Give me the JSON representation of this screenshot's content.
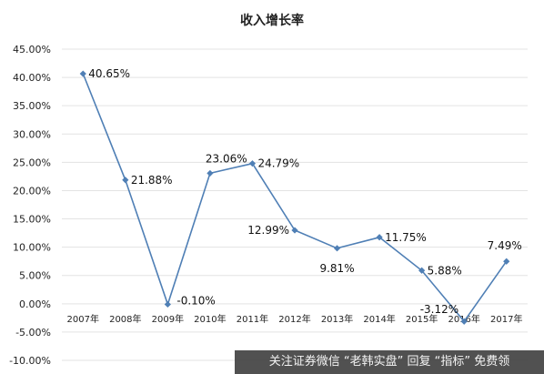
{
  "chart_data": {
    "type": "line",
    "title": "收入增长率",
    "categories": [
      "2007年",
      "2008年",
      "2009年",
      "2010年",
      "2011年",
      "2012年",
      "2013年",
      "2014年",
      "2015年",
      "2016年",
      "2017年"
    ],
    "series": [
      {
        "values": [
          40.65,
          21.88,
          -0.1,
          23.06,
          24.79,
          12.99,
          9.81,
          11.75,
          5.88,
          -3.12,
          7.49
        ],
        "data_labels": [
          "40.65%",
          "21.88%",
          "-0.10%",
          "23.06%",
          "24.79%",
          "12.99%",
          "9.81%",
          "11.75%",
          "5.88%",
          "-3.12%",
          "7.49%"
        ],
        "color": "#4f7fb5"
      }
    ],
    "ylim": [
      -10,
      45
    ],
    "yticks": [
      -10,
      -5,
      0,
      5,
      10,
      15,
      20,
      25,
      30,
      35,
      40,
      45
    ],
    "ytick_labels": [
      "-10.00%",
      "-5.00%",
      "0.00%",
      "5.00%",
      "10.00%",
      "15.00%",
      "20.00%",
      "25.00%",
      "30.00%",
      "35.00%",
      "40.00%",
      "45.00%"
    ],
    "grid": true,
    "legend": false
  },
  "watermark": {
    "text": "关注证券微信 “老韩实盘” 回复 “指标” 免费领"
  }
}
